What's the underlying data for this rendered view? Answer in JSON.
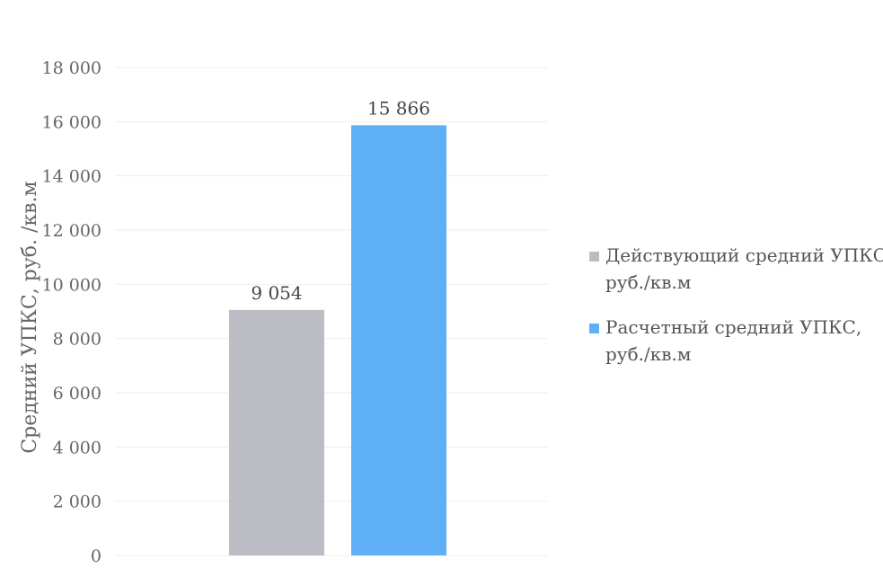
{
  "chart_data": {
    "type": "bar",
    "title": "",
    "xlabel": "",
    "ylabel": "Средний УПКС, руб. /кв.м",
    "ylim": [
      0,
      18000
    ],
    "ytick_labels": [
      "0",
      "2 000",
      "4 000",
      "6 000",
      "8 000",
      "10 000",
      "12 000",
      "14 000",
      "16 000",
      "18 000"
    ],
    "grid": true,
    "legend_position": "right",
    "series": [
      {
        "name_lines": [
          "Действующий средний УПКС,",
          "руб./кв.м"
        ],
        "value": 9054,
        "label": "9 054",
        "color": "#bcbcc4"
      },
      {
        "name_lines": [
          "Расчетный средний УПКС,",
          "руб./кв.м"
        ],
        "value": 15866,
        "label": "15 866",
        "color": "#5eaff5"
      }
    ]
  }
}
